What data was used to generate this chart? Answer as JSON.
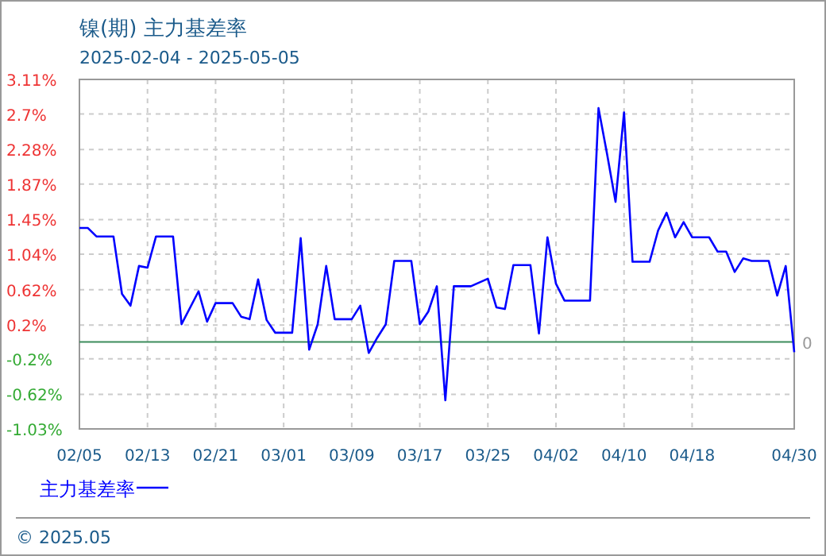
{
  "chart_data": {
    "type": "line",
    "title": "镍(期) 主力基差率",
    "subtitle": "2025-02-04 - 2025-05-05",
    "xlim": [
      "2025-02-05",
      "2025-04-30"
    ],
    "xticks": [
      {
        "value": "2025-02-05",
        "label": "02/05"
      },
      {
        "value": "2025-02-13",
        "label": "02/13"
      },
      {
        "value": "2025-02-21",
        "label": "02/21"
      },
      {
        "value": "2025-03-01",
        "label": "03/01"
      },
      {
        "value": "2025-03-09",
        "label": "03/09"
      },
      {
        "value": "2025-03-17",
        "label": "03/17"
      },
      {
        "value": "2025-03-25",
        "label": "03/25"
      },
      {
        "value": "2025-04-02",
        "label": "04/02"
      },
      {
        "value": "2025-04-10",
        "label": "04/10"
      },
      {
        "value": "2025-04-18",
        "label": "04/18"
      },
      {
        "value": "2025-04-30",
        "label": "04/30"
      }
    ],
    "ylim": [
      -1.03,
      3.11
    ],
    "yticks": [
      {
        "value": 3.11,
        "label": "3.11%"
      },
      {
        "value": 2.7,
        "label": "2.7%"
      },
      {
        "value": 2.28,
        "label": "2.28%"
      },
      {
        "value": 1.87,
        "label": "1.87%"
      },
      {
        "value": 1.45,
        "label": "1.45%"
      },
      {
        "value": 1.04,
        "label": "1.04%"
      },
      {
        "value": 0.62,
        "label": "0.62%"
      },
      {
        "value": 0.2,
        "label": "0.2%"
      },
      {
        "value": -0.2,
        "label": "-0.2%"
      },
      {
        "value": -0.62,
        "label": "-0.62%"
      },
      {
        "value": -1.03,
        "label": "-1.03%"
      }
    ],
    "grid": true,
    "legend": "bottom left",
    "line_style": "solid",
    "marker": "none",
    "ref_lines": [
      {
        "axis": "y",
        "value": 0,
        "label": "0",
        "color": "#3c8c5c"
      }
    ],
    "annotations": [
      "© 2025.05"
    ],
    "series": [
      {
        "name": "主力基差率",
        "color": "#0000ff",
        "x": [
          "2025-02-05",
          "2025-02-06",
          "2025-02-07",
          "2025-02-09",
          "2025-02-10",
          "2025-02-11",
          "2025-02-12",
          "2025-02-13",
          "2025-02-14",
          "2025-02-16",
          "2025-02-17",
          "2025-02-19",
          "2025-02-20",
          "2025-02-21",
          "2025-02-23",
          "2025-02-24",
          "2025-02-25",
          "2025-02-26",
          "2025-02-27",
          "2025-02-28",
          "2025-03-02",
          "2025-03-03",
          "2025-03-04",
          "2025-03-05",
          "2025-03-06",
          "2025-03-07",
          "2025-03-09",
          "2025-03-10",
          "2025-03-11",
          "2025-03-12",
          "2025-03-13",
          "2025-03-14",
          "2025-03-16",
          "2025-03-17",
          "2025-03-18",
          "2025-03-19",
          "2025-03-20",
          "2025-03-21",
          "2025-03-23",
          "2025-03-25",
          "2025-03-26",
          "2025-03-27",
          "2025-03-28",
          "2025-03-30",
          "2025-03-31",
          "2025-04-01",
          "2025-04-02",
          "2025-04-03",
          "2025-04-06",
          "2025-04-07",
          "2025-04-08",
          "2025-04-09",
          "2025-04-10",
          "2025-04-11",
          "2025-04-13",
          "2025-04-14",
          "2025-04-15",
          "2025-04-16",
          "2025-04-17",
          "2025-04-18",
          "2025-04-20",
          "2025-04-21",
          "2025-04-22",
          "2025-04-23",
          "2025-04-24",
          "2025-04-25",
          "2025-04-27",
          "2025-04-28",
          "2025-04-29",
          "2025-04-30"
        ],
        "values": [
          1.35,
          1.35,
          1.25,
          1.25,
          0.57,
          0.43,
          0.9,
          0.88,
          1.25,
          1.25,
          0.21,
          0.6,
          0.24,
          0.46,
          0.46,
          0.3,
          0.27,
          0.74,
          0.26,
          0.11,
          0.11,
          1.23,
          -0.09,
          0.21,
          0.9,
          0.27,
          0.27,
          0.43,
          -0.13,
          0.05,
          0.21,
          0.96,
          0.96,
          0.21,
          0.36,
          0.66,
          -0.69,
          0.66,
          0.66,
          0.75,
          0.41,
          0.39,
          0.91,
          0.91,
          0.1,
          1.24,
          0.69,
          0.49,
          0.49,
          2.77,
          2.23,
          1.66,
          2.72,
          0.95,
          0.95,
          1.32,
          1.53,
          1.24,
          1.42,
          1.24,
          1.24,
          1.07,
          1.07,
          0.83,
          0.99,
          0.96,
          0.96,
          0.55,
          0.9,
          -0.12
        ]
      }
    ]
  }
}
